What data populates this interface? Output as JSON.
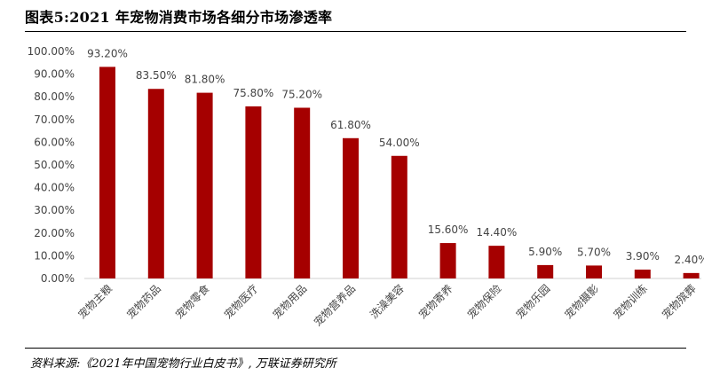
{
  "title": "图表5:2021 年宠物消费市场各细分市场渗透率",
  "source": "资料来源:《2021年中国宠物行业白皮书》, 万联证券研究所",
  "chart_data": {
    "type": "bar",
    "categories": [
      "宠物主粮",
      "宠物药品",
      "宠物零食",
      "宠物医疗",
      "宠物用品",
      "宠物营养品",
      "洗澡美容",
      "宠物寄养",
      "宠物保险",
      "宠物乐园",
      "宠物摄影",
      "宠物训练",
      "宠物殡葬"
    ],
    "values": [
      93.2,
      83.5,
      81.8,
      75.8,
      75.2,
      61.8,
      54.0,
      15.6,
      14.4,
      5.9,
      5.7,
      3.9,
      2.4
    ],
    "value_labels": [
      "93.20%",
      "83.50%",
      "81.80%",
      "75.80%",
      "75.20%",
      "61.80%",
      "54.00%",
      "15.60%",
      "14.40%",
      "5.90%",
      "5.70%",
      "3.90%",
      "2.40%"
    ],
    "ylim": [
      0,
      100
    ],
    "yticks": [
      "0.00%",
      "10.00%",
      "20.00%",
      "30.00%",
      "40.00%",
      "50.00%",
      "60.00%",
      "70.00%",
      "80.00%",
      "90.00%",
      "100.00%"
    ],
    "bar_color": "#a50000",
    "grid": false,
    "legend": "none"
  }
}
